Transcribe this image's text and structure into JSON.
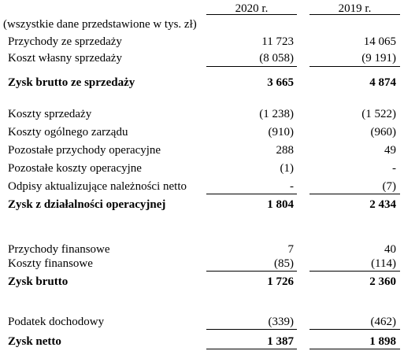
{
  "header": {
    "col1": "2020 r.",
    "col2": "2019 r.",
    "units_note": "(wszystkie dane przedstawione w tys. zł)"
  },
  "rows": [
    {
      "label": "Przychody ze sprzedaży",
      "v2020": "11 723",
      "v2019": "14 065"
    },
    {
      "label": "Koszt własny sprzedaży",
      "v2020": "(8 058)",
      "v2019": "(9 191)"
    },
    {
      "label": "Zysk brutto ze sprzedaży",
      "v2020": "3 665",
      "v2019": "4 874"
    },
    {
      "label": "Koszty sprzedaży",
      "v2020": "(1 238)",
      "v2019": "(1 522)"
    },
    {
      "label": "Koszty ogólnego zarządu",
      "v2020": "(910)",
      "v2019": "(960)"
    },
    {
      "label": "Pozostałe przychody operacyjne",
      "v2020": "288",
      "v2019": "49"
    },
    {
      "label": "Pozostałe koszty operacyjne",
      "v2020": "(1)",
      "v2019": "-"
    },
    {
      "label": "Odpisy aktualizujące należności netto",
      "v2020": "-",
      "v2019": "(7)"
    },
    {
      "label": "Zysk z działalności operacyjnej",
      "v2020": "1 804",
      "v2019": "2 434"
    },
    {
      "label": "Przychody finansowe",
      "v2020": "7",
      "v2019": "40"
    },
    {
      "label": "Koszty finansowe",
      "v2020": "(85)",
      "v2019": "(114)"
    },
    {
      "label": "Zysk brutto",
      "v2020": "1 726",
      "v2019": "2 360"
    },
    {
      "label": "Podatek dochodowy",
      "v2020": "(339)",
      "v2019": "(462)"
    },
    {
      "label": "Zysk netto",
      "v2020": "1 387",
      "v2019": "1 898"
    }
  ]
}
